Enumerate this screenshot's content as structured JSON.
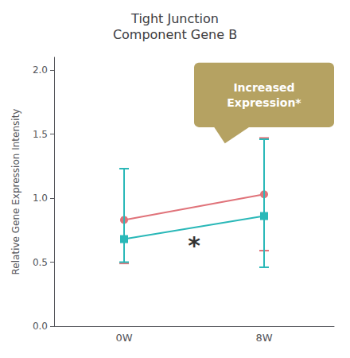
{
  "chart_data": {
    "type": "line",
    "title": "Tight Junction\nComponent Gene B",
    "ylabel": "Relative Gene Expression Intensity",
    "categories": [
      "0W",
      "8W"
    ],
    "ylim": [
      0.0,
      2.1
    ],
    "yticks": [
      {
        "value": 0.0,
        "label": "0.0"
      },
      {
        "value": 0.5,
        "label": "0.5"
      },
      {
        "value": 1.0,
        "label": "1.0"
      },
      {
        "value": 1.5,
        "label": "1.5"
      },
      {
        "value": 2.0,
        "label": "2.0"
      }
    ],
    "grid": false,
    "series": [
      {
        "color": "#e0737a",
        "marker": "circle",
        "values": [
          0.83,
          1.03
        ],
        "error_lo": [
          0.34,
          0.44
        ],
        "error_hi": [
          0.4,
          0.44
        ]
      },
      {
        "color": "#2ab8b8",
        "marker": "square",
        "values": [
          0.68,
          0.86
        ],
        "error_lo": [
          0.18,
          0.4
        ],
        "error_hi": [
          0.55,
          0.6
        ]
      }
    ],
    "annotations": [
      {
        "text": "*",
        "y": 0.63
      },
      {
        "text": "Increased\nExpression*",
        "color": "#b5a262"
      }
    ]
  }
}
